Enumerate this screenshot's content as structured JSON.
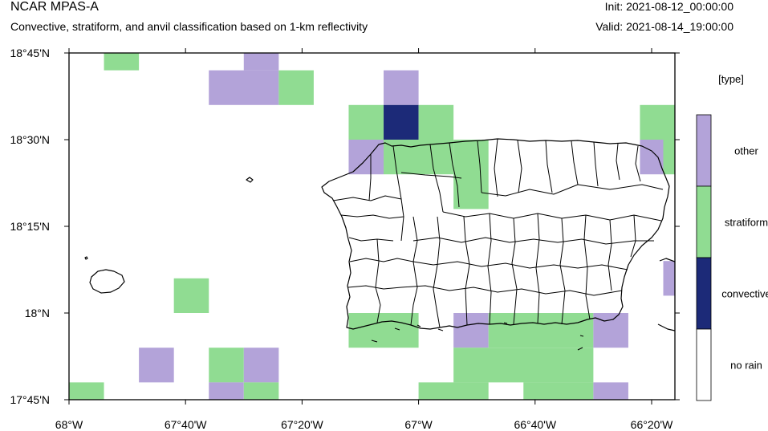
{
  "header": {
    "title": "NCAR MPAS-A",
    "subtitle": "Convective, stratiform, and anvil classification based on 1-km reflectivity",
    "init": "Init: 2021-08-12_00:00:00",
    "valid": "Valid: 2021-08-14_19:00:00"
  },
  "axes": {
    "lon_range": [
      -68.0,
      -66.2667
    ],
    "lat_range": [
      17.75,
      18.75
    ],
    "x_ticks": [
      {
        "value": -68.0,
        "label": "68°W"
      },
      {
        "value": -67.6667,
        "label": "67°40'W"
      },
      {
        "value": -67.3333,
        "label": "67°20'W"
      },
      {
        "value": -67.0,
        "label": "67°W"
      },
      {
        "value": -66.6667,
        "label": "66°40'W"
      },
      {
        "value": -66.3333,
        "label": "66°20'W"
      }
    ],
    "y_ticks": [
      {
        "value": 18.75,
        "label": "18°45'N"
      },
      {
        "value": 18.5,
        "label": "18°30'N"
      },
      {
        "value": 18.25,
        "label": "18°15'N"
      },
      {
        "value": 18.0,
        "label": "18°N"
      },
      {
        "value": 17.75,
        "label": "17°45'N"
      }
    ]
  },
  "legend": {
    "title": "[type]",
    "entries": [
      {
        "label": "other",
        "color": "#b3a3d9"
      },
      {
        "label": "stratiform",
        "color": "#90dc92"
      },
      {
        "label": "convective",
        "color": "#1c2a78"
      },
      {
        "label": "no rain",
        "color": "#ffffff"
      }
    ]
  },
  "classes": {
    "other": "#b3a3d9",
    "stratiform": "#90dc92",
    "convective": "#1c2a78"
  },
  "cells": [
    {
      "lon": [
        -67.9,
        -67.8
      ],
      "lat": [
        18.7,
        18.75
      ],
      "type": "stratiform"
    },
    {
      "lon": [
        -67.5,
        -67.4
      ],
      "lat": [
        18.7,
        18.75
      ],
      "type": "other"
    },
    {
      "lon": [
        -67.6,
        -67.4
      ],
      "lat": [
        18.6,
        18.7
      ],
      "type": "other"
    },
    {
      "lon": [
        -67.4,
        -67.3
      ],
      "lat": [
        18.6,
        18.7
      ],
      "type": "stratiform"
    },
    {
      "lon": [
        -67.1,
        -67.0
      ],
      "lat": [
        18.6,
        18.7
      ],
      "type": "other"
    },
    {
      "lon": [
        -67.2,
        -67.1
      ],
      "lat": [
        18.5,
        18.6
      ],
      "type": "stratiform"
    },
    {
      "lon": [
        -67.1,
        -67.0
      ],
      "lat": [
        18.5,
        18.6
      ],
      "type": "convective"
    },
    {
      "lon": [
        -67.0,
        -66.9
      ],
      "lat": [
        18.5,
        18.6
      ],
      "type": "stratiform"
    },
    {
      "lon": [
        -67.2,
        -67.1
      ],
      "lat": [
        18.4,
        18.5
      ],
      "type": "other"
    },
    {
      "lon": [
        -67.1,
        -66.9
      ],
      "lat": [
        18.4,
        18.5
      ],
      "type": "stratiform"
    },
    {
      "lon": [
        -66.9,
        -66.8
      ],
      "lat": [
        18.3,
        18.5
      ],
      "type": "stratiform"
    },
    {
      "lon": [
        -66.3667,
        -66.2667
      ],
      "lat": [
        18.5,
        18.6
      ],
      "type": "stratiform"
    },
    {
      "lon": [
        -66.3667,
        -66.3
      ],
      "lat": [
        18.4,
        18.5
      ],
      "type": "other"
    },
    {
      "lon": [
        -66.3,
        -66.2667
      ],
      "lat": [
        18.4,
        18.5
      ],
      "type": "stratiform"
    },
    {
      "lon": [
        -66.3,
        -66.2667
      ],
      "lat": [
        18.05,
        18.15
      ],
      "type": "other"
    },
    {
      "lon": [
        -67.7,
        -67.6
      ],
      "lat": [
        18.0,
        18.1
      ],
      "type": "stratiform"
    },
    {
      "lon": [
        -67.2,
        -67.0
      ],
      "lat": [
        17.9,
        18.0
      ],
      "type": "stratiform"
    },
    {
      "lon": [
        -66.9,
        -66.8
      ],
      "lat": [
        17.9,
        18.0
      ],
      "type": "other"
    },
    {
      "lon": [
        -66.8,
        -66.5
      ],
      "lat": [
        17.9,
        18.0
      ],
      "type": "stratiform"
    },
    {
      "lon": [
        -66.5,
        -66.4
      ],
      "lat": [
        17.9,
        18.0
      ],
      "type": "other"
    },
    {
      "lon": [
        -67.8,
        -67.7
      ],
      "lat": [
        17.8,
        17.9
      ],
      "type": "other"
    },
    {
      "lon": [
        -67.6,
        -67.5
      ],
      "lat": [
        17.8,
        17.9
      ],
      "type": "stratiform"
    },
    {
      "lon": [
        -67.5,
        -67.4
      ],
      "lat": [
        17.8,
        17.9
      ],
      "type": "other"
    },
    {
      "lon": [
        -66.9,
        -66.5
      ],
      "lat": [
        17.8,
        17.9
      ],
      "type": "stratiform"
    },
    {
      "lon": [
        -68.0,
        -67.9
      ],
      "lat": [
        17.75,
        17.8
      ],
      "type": "stratiform"
    },
    {
      "lon": [
        -67.6,
        -67.5
      ],
      "lat": [
        17.75,
        17.8
      ],
      "type": "other"
    },
    {
      "lon": [
        -67.5,
        -67.4
      ],
      "lat": [
        17.75,
        17.8
      ],
      "type": "stratiform"
    },
    {
      "lon": [
        -67.0,
        -66.8
      ],
      "lat": [
        17.75,
        17.8
      ],
      "type": "stratiform"
    },
    {
      "lon": [
        -66.7,
        -66.5
      ],
      "lat": [
        17.75,
        17.8
      ],
      "type": "stratiform"
    },
    {
      "lon": [
        -66.5,
        -66.4
      ],
      "lat": [
        17.75,
        17.8
      ],
      "type": "other"
    }
  ]
}
